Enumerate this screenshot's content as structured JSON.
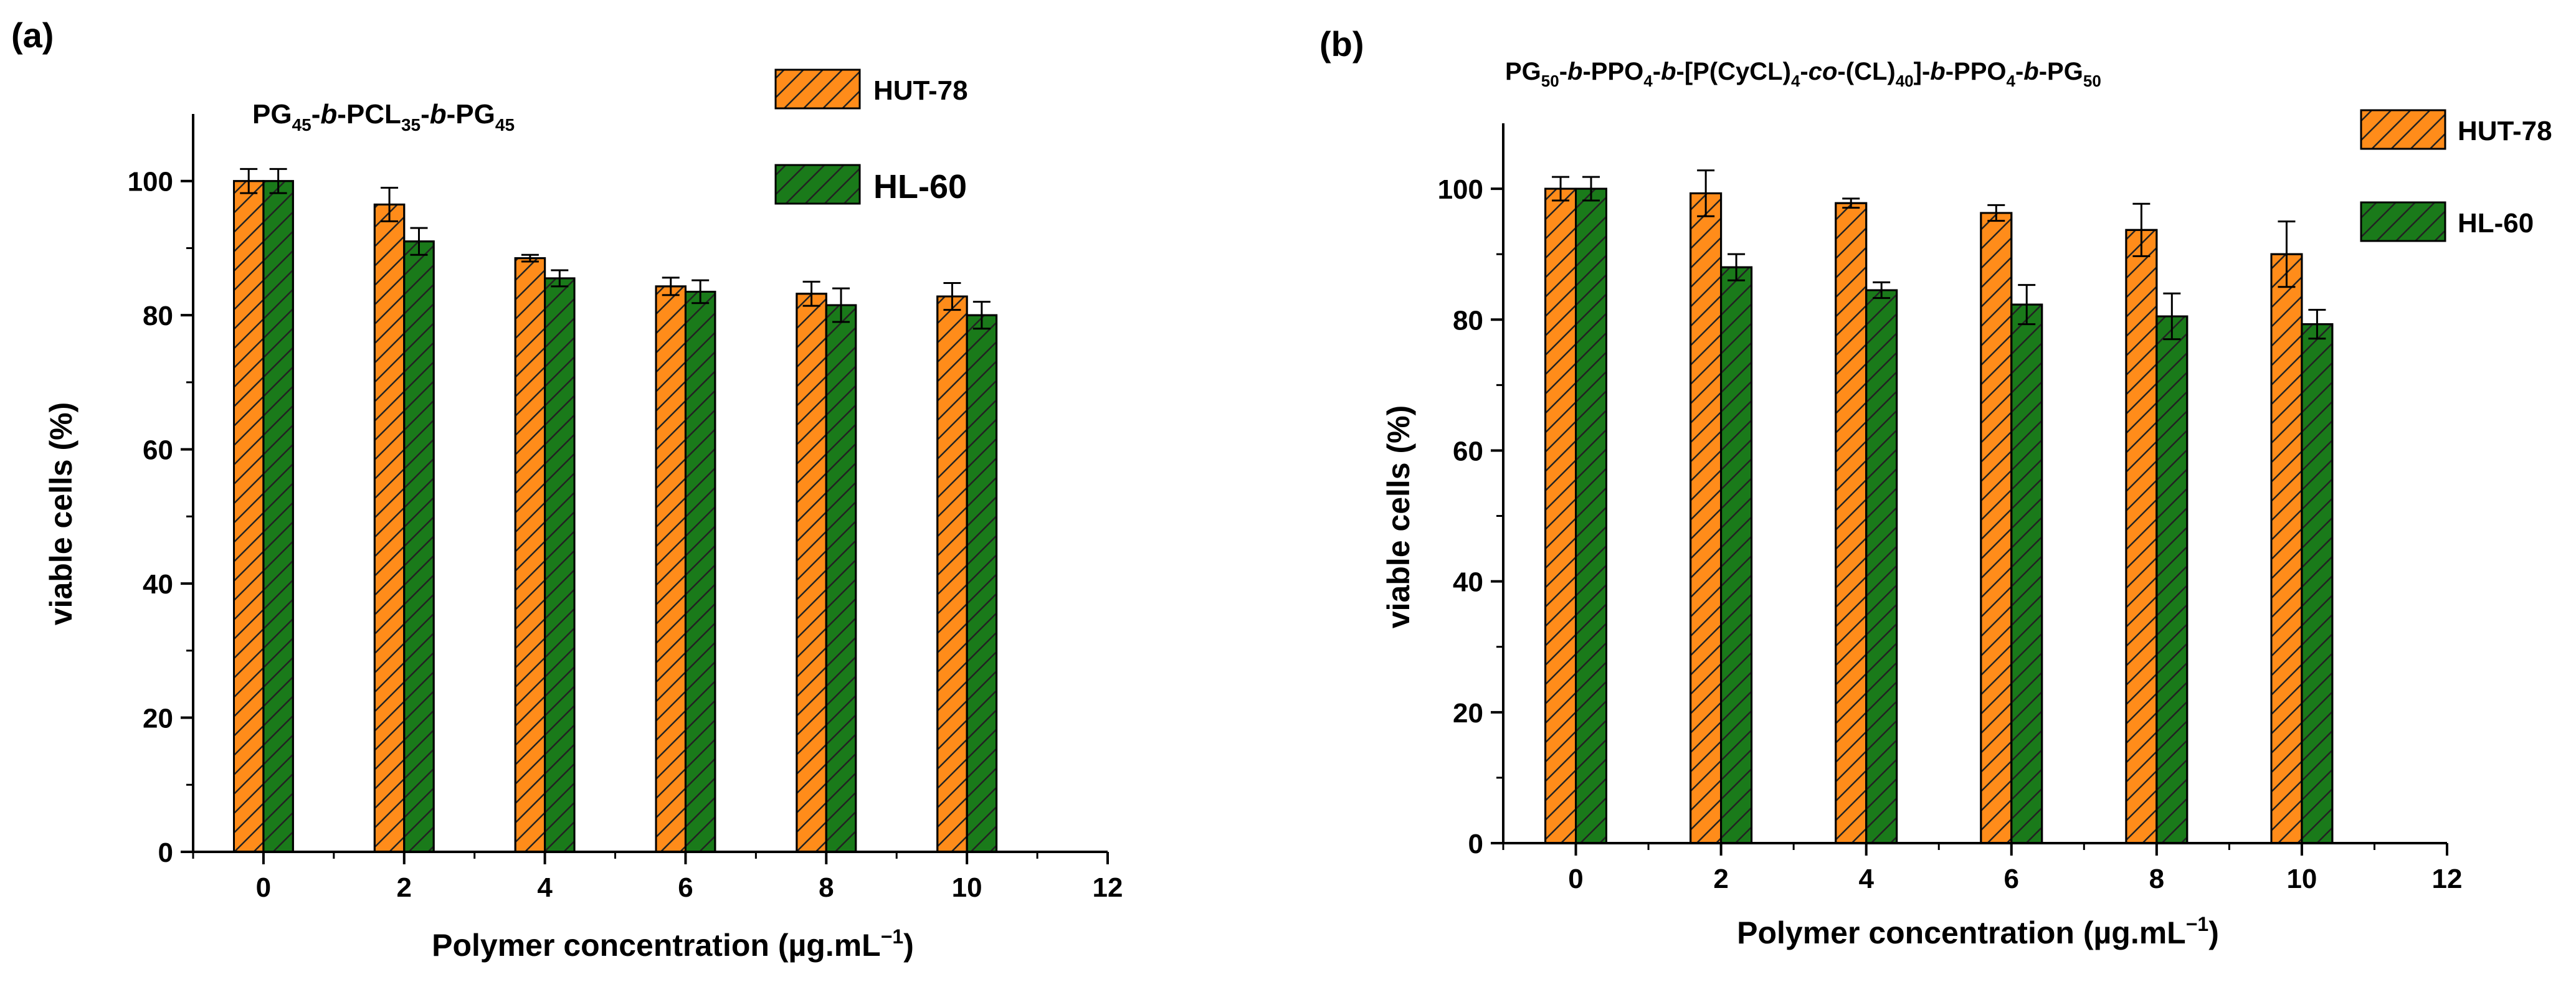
{
  "panel_a": {
    "label": "(a)",
    "title": {
      "main": [
        "PG",
        "-",
        "b",
        "-PCL",
        "-",
        "b",
        "-PG"
      ],
      "subs": [
        "45",
        "35",
        "45"
      ]
    },
    "legend": {
      "hut": "HUT-78",
      "hl": "HL-60"
    }
  },
  "panel_b": {
    "label": "(b)",
    "title": {
      "subs": [
        "50",
        "4",
        "4",
        "40",
        "4",
        "50"
      ]
    },
    "legend": {
      "hut": "HUT-78",
      "hl": "HL-60"
    }
  },
  "axes": {
    "xlabel": "Polymer concentration (µg.mL",
    "xlabel_sup": "−1",
    "xlabel_end": ")",
    "ylabel": "viable cells (%)"
  },
  "colors": {
    "hut": "#ff8c1a",
    "hl": "#1a7a1a",
    "hatch": "#222222",
    "axis": "#000000"
  },
  "chart_data": [
    {
      "type": "bar",
      "title": "PG45-b-PCL35-b-PG45",
      "xlabel": "Polymer concentration (µg.mL−1)",
      "ylabel": "viable cells (%)",
      "categories": [
        0,
        2,
        4,
        6,
        8,
        10
      ],
      "xticks": [
        0,
        2,
        4,
        6,
        8,
        10,
        12
      ],
      "yticks": [
        0,
        20,
        40,
        60,
        80,
        100
      ],
      "xlim": [
        -1,
        12
      ],
      "ylim": [
        0,
        110
      ],
      "series": [
        {
          "name": "HUT-78",
          "values": [
            100,
            96.5,
            88.5,
            84.3,
            83.2,
            82.8
          ],
          "errors": [
            1.8,
            2.5,
            0.5,
            1.3,
            1.8,
            2.0
          ]
        },
        {
          "name": "HL-60",
          "values": [
            100,
            91,
            85.5,
            83.5,
            81.5,
            80.0
          ],
          "errors": [
            1.8,
            2.0,
            1.2,
            1.7,
            2.5,
            2.0
          ]
        }
      ]
    },
    {
      "type": "bar",
      "title": "PG50-b-PPO4-b-[P(CyCL)4-co-(CL)40]-b-PPO4-b-PG50",
      "xlabel": "Polymer concentration (µg.mL−1)",
      "ylabel": "viable cells (%)",
      "categories": [
        0,
        2,
        4,
        6,
        8,
        10
      ],
      "xticks": [
        0,
        2,
        4,
        6,
        8,
        10,
        12
      ],
      "yticks": [
        0,
        20,
        40,
        60,
        80,
        100
      ],
      "xlim": [
        -1,
        12
      ],
      "ylim": [
        0,
        110
      ],
      "series": [
        {
          "name": "HUT-78",
          "values": [
            100,
            99.3,
            97.8,
            96.3,
            93.7,
            90.0
          ],
          "errors": [
            1.8,
            3.5,
            0.7,
            1.2,
            4.0,
            5.0
          ]
        },
        {
          "name": "HL-60",
          "values": [
            100,
            88,
            84.5,
            82.3,
            80.5,
            79.3
          ],
          "errors": [
            1.8,
            2.0,
            1.2,
            3.0,
            3.5,
            2.2
          ]
        }
      ]
    }
  ]
}
